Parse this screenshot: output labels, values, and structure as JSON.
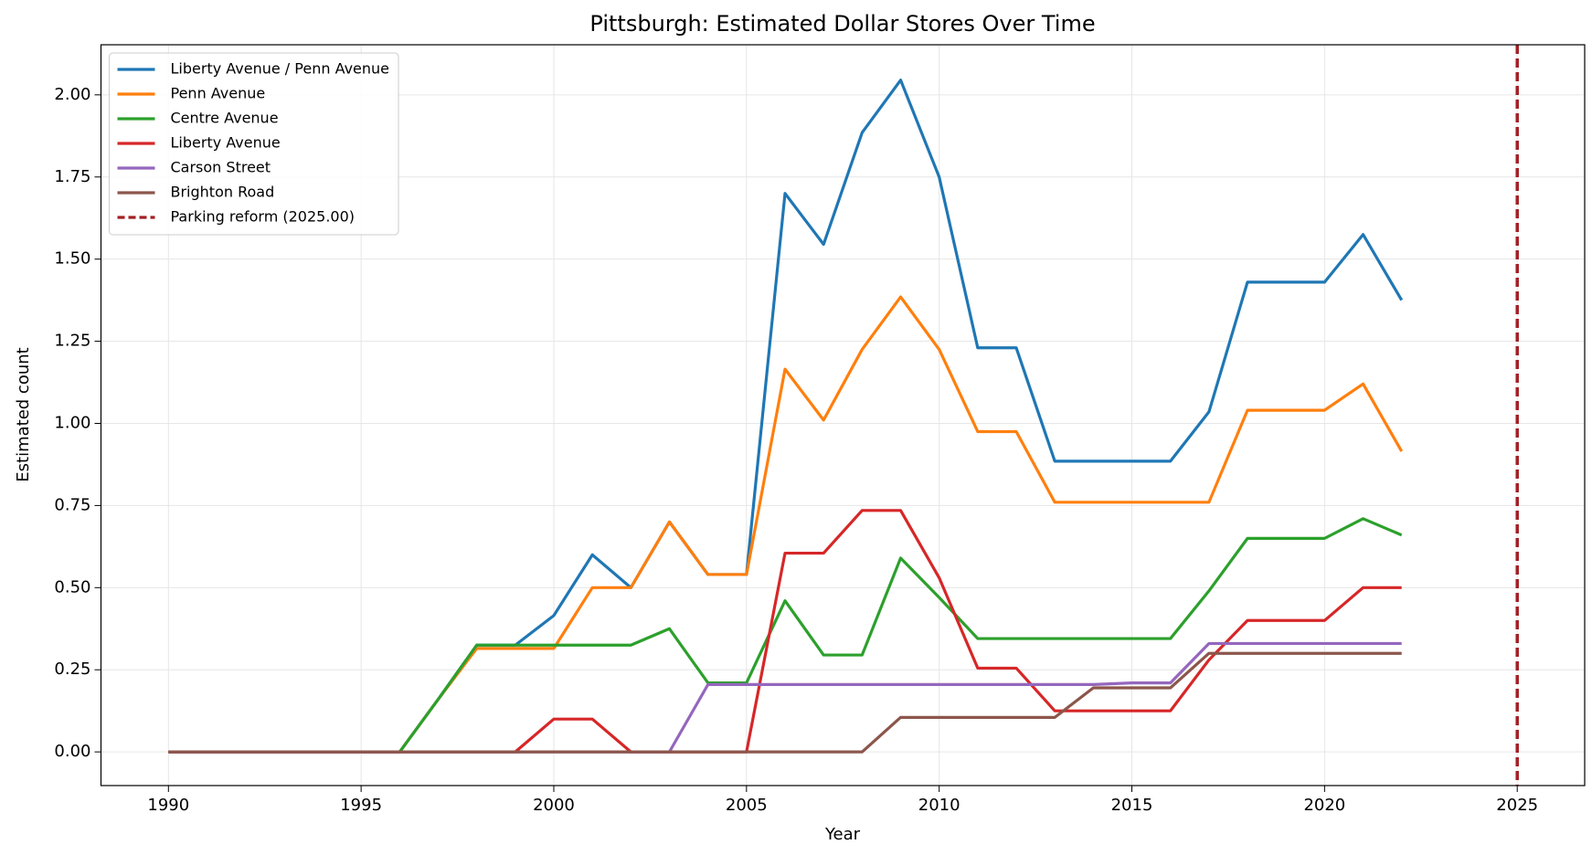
{
  "chart_data": {
    "type": "line",
    "title": "Pittsburgh: Estimated Dollar Stores Over Time",
    "xlabel": "Year",
    "ylabel": "Estimated count",
    "x": [
      1990,
      1991,
      1992,
      1993,
      1994,
      1995,
      1996,
      1997,
      1998,
      1999,
      2000,
      2001,
      2002,
      2003,
      2004,
      2005,
      2006,
      2007,
      2008,
      2009,
      2010,
      2011,
      2012,
      2013,
      2014,
      2015,
      2016,
      2017,
      2018,
      2019,
      2020,
      2021,
      2022
    ],
    "series": [
      {
        "name": "Liberty Avenue / Penn Avenue",
        "color": "#1f77b4",
        "values": [
          0,
          0,
          0,
          0,
          0,
          0,
          0,
          0.16,
          0.325,
          0.325,
          0.415,
          0.6,
          0.5,
          0.7,
          0.54,
          0.54,
          1.7,
          1.545,
          1.885,
          2.045,
          1.75,
          1.23,
          1.23,
          0.885,
          0.885,
          0.885,
          0.885,
          1.035,
          1.43,
          1.43,
          1.43,
          1.575,
          1.375
        ]
      },
      {
        "name": "Penn Avenue",
        "color": "#ff7f0e",
        "values": [
          0,
          0,
          0,
          0,
          0,
          0,
          0,
          0.16,
          0.315,
          0.315,
          0.315,
          0.5,
          0.5,
          0.7,
          0.54,
          0.54,
          1.165,
          1.01,
          1.225,
          1.385,
          1.225,
          0.975,
          0.975,
          0.76,
          0.76,
          0.76,
          0.76,
          0.76,
          1.04,
          1.04,
          1.04,
          1.12,
          0.915
        ]
      },
      {
        "name": "Centre Avenue",
        "color": "#2ca02c",
        "values": [
          0,
          0,
          0,
          0,
          0,
          0,
          0,
          0.16,
          0.325,
          0.325,
          0.325,
          0.325,
          0.325,
          0.375,
          0.21,
          0.21,
          0.46,
          0.295,
          0.295,
          0.59,
          0.47,
          0.345,
          0.345,
          0.345,
          0.345,
          0.345,
          0.345,
          0.49,
          0.65,
          0.65,
          0.65,
          0.71,
          0.66
        ]
      },
      {
        "name": "Liberty Avenue",
        "color": "#d62728",
        "values": [
          0,
          0,
          0,
          0,
          0,
          0,
          0,
          0,
          0,
          0,
          0.1,
          0.1,
          0,
          0,
          0,
          0,
          0.605,
          0.605,
          0.735,
          0.735,
          0.53,
          0.255,
          0.255,
          0.125,
          0.125,
          0.125,
          0.125,
          0.28,
          0.4,
          0.4,
          0.4,
          0.5,
          0.5
        ]
      },
      {
        "name": "Carson Street",
        "color": "#9467bd",
        "values": [
          0,
          0,
          0,
          0,
          0,
          0,
          0,
          0,
          0,
          0,
          0,
          0,
          0,
          0,
          0.205,
          0.205,
          0.205,
          0.205,
          0.205,
          0.205,
          0.205,
          0.205,
          0.205,
          0.205,
          0.205,
          0.21,
          0.21,
          0.33,
          0.33,
          0.33,
          0.33,
          0.33,
          0.33
        ]
      },
      {
        "name": "Brighton Road",
        "color": "#8c564b",
        "values": [
          0,
          0,
          0,
          0,
          0,
          0,
          0,
          0,
          0,
          0,
          0,
          0,
          0,
          0,
          0,
          0,
          0,
          0,
          0,
          0.105,
          0.105,
          0.105,
          0.105,
          0.105,
          0.195,
          0.195,
          0.195,
          0.3,
          0.3,
          0.3,
          0.3,
          0.3,
          0.3
        ]
      }
    ],
    "vline": {
      "x": 2025,
      "label": "Parking reform (2025.00)",
      "color": "#a31f24"
    },
    "xlim": [
      1988.25,
      2026.75
    ],
    "xticks": [
      1990,
      1995,
      2000,
      2005,
      2010,
      2015,
      2020,
      2025
    ],
    "ylim": [
      -0.1025,
      2.1525
    ],
    "yticks": [
      {
        "value": 0,
        "label": "0.00"
      },
      {
        "value": 0.25,
        "label": "0.25"
      },
      {
        "value": 0.5,
        "label": "0.50"
      },
      {
        "value": 0.75,
        "label": "0.75"
      },
      {
        "value": 1,
        "label": "1.00"
      },
      {
        "value": 1.25,
        "label": "1.25"
      },
      {
        "value": 1.5,
        "label": "1.50"
      },
      {
        "value": 1.75,
        "label": "1.75"
      },
      {
        "value": 2,
        "label": "2.00"
      }
    ],
    "grid": true,
    "legend": "upper left"
  }
}
